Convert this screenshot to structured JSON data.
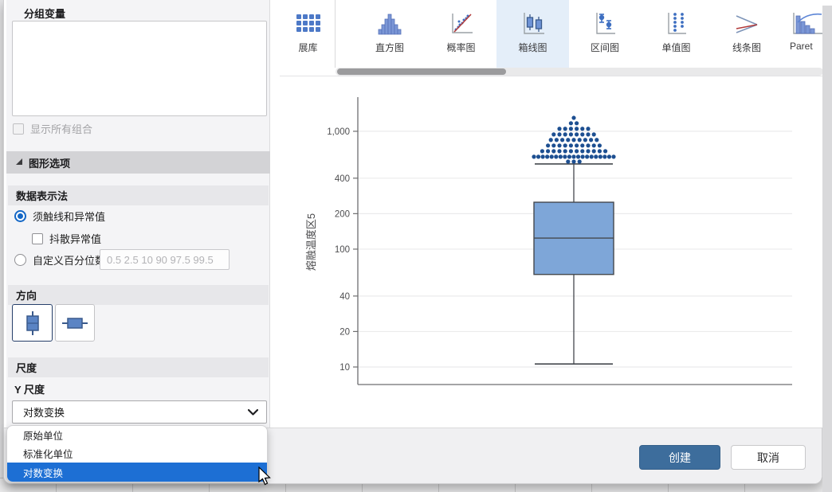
{
  "toolbar": {
    "items": [
      {
        "label": "展库",
        "icon": "gallery-icon",
        "selected": false
      },
      {
        "label": "直方图",
        "icon": "histogram-icon",
        "selected": false
      },
      {
        "label": "概率图",
        "icon": "probability-plot-icon",
        "selected": false
      },
      {
        "label": "箱线图",
        "icon": "boxplot-icon",
        "selected": true
      },
      {
        "label": "区间图",
        "icon": "interval-plot-icon",
        "selected": false
      },
      {
        "label": "单值图",
        "icon": "individual-value-plot-icon",
        "selected": false
      },
      {
        "label": "线条图",
        "icon": "line-plot-icon",
        "selected": false
      },
      {
        "label": "Paret",
        "icon": "pareto-chart-icon",
        "selected": false
      }
    ]
  },
  "sidebar": {
    "grouping_label": "分组变量",
    "show_all_combinations_label": "显示所有组合",
    "graph_options_label": "图形选项",
    "data_display": {
      "header": "数据表示法",
      "whiskers_outliers_label": "须触线和异常值",
      "jitter_outliers_label": "抖散异常值",
      "custom_percentiles_label": "自定义百分位数:",
      "custom_percentiles_value": "0.5 2.5 10 90 97.5 99.5"
    },
    "orientation": {
      "header": "方向"
    },
    "scale": {
      "header": "尺度",
      "y_scale_label": "Y 尺度",
      "selected_option": "对数变换",
      "options": [
        "原始单位",
        "标准化单位",
        "对数变换"
      ],
      "active_option_index": 2
    }
  },
  "footer": {
    "create_label": "创建",
    "cancel_label": "取消"
  },
  "chart_data": {
    "type": "boxplot",
    "orientation": "vertical",
    "title": "",
    "xlabel": "",
    "ylabel": "熔融温度区5",
    "y_scale": "log",
    "ylim": [
      7.1,
      1860
    ],
    "grid": true,
    "y_ticks": [
      {
        "value": 1000,
        "label": "1,000"
      },
      {
        "value": 400,
        "label": "400"
      },
      {
        "value": 200,
        "label": "200"
      },
      {
        "value": 100,
        "label": "100"
      },
      {
        "value": 40,
        "label": "40"
      },
      {
        "value": 20,
        "label": "20"
      },
      {
        "value": 10,
        "label": "10"
      }
    ],
    "box": {
      "whisker_low": 10.6,
      "q1": 61,
      "median": 124,
      "q3": 250,
      "whisker_high": 528
    },
    "outlier_dot_rows": [
      {
        "value": 1300,
        "count": 1
      },
      {
        "value": 1170,
        "count": 2
      },
      {
        "value": 1050,
        "count": 6
      },
      {
        "value": 940,
        "count": 8
      },
      {
        "value": 845,
        "count": 9
      },
      {
        "value": 757,
        "count": 10
      },
      {
        "value": 678,
        "count": 12
      },
      {
        "value": 608,
        "count": 19
      },
      {
        "value": 553,
        "count": 3
      }
    ],
    "colors": {
      "box_fill": "#7ea6d8",
      "box_border": "#44484e",
      "dot": "#1d4f91",
      "grid_line": "#ebebec",
      "axis_line": "#6e6e70",
      "tick_label": "#4e4e50",
      "axis_label": "#4a4a4c"
    }
  },
  "colors": {
    "accent_blue": "#1d6fd4",
    "create_button": "#3d6d9c",
    "selected_tab_bg": "#e4eef9",
    "toolbar_icon_blue": "#4d79c7"
  }
}
